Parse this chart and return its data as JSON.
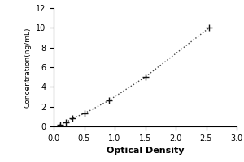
{
  "x": [
    0.1,
    0.2,
    0.3,
    0.5,
    0.9,
    1.5,
    2.55
  ],
  "y": [
    0.2,
    0.4,
    0.8,
    1.3,
    2.6,
    5.0,
    10.0
  ],
  "xlabel": "Optical Density",
  "ylabel": "Concentration(ng/mL)",
  "xlim": [
    0,
    3
  ],
  "ylim": [
    0,
    12
  ],
  "xticks": [
    0,
    0.5,
    1,
    1.5,
    2,
    2.5,
    3
  ],
  "yticks": [
    0,
    2,
    4,
    6,
    8,
    10,
    12
  ],
  "line_color": "#444444",
  "marker_color": "#111111",
  "background_color": "#ffffff",
  "line_style": "dotted",
  "marker_style": "+",
  "xlabel_fontsize": 8,
  "ylabel_fontsize": 6.5,
  "tick_labelsize": 7
}
